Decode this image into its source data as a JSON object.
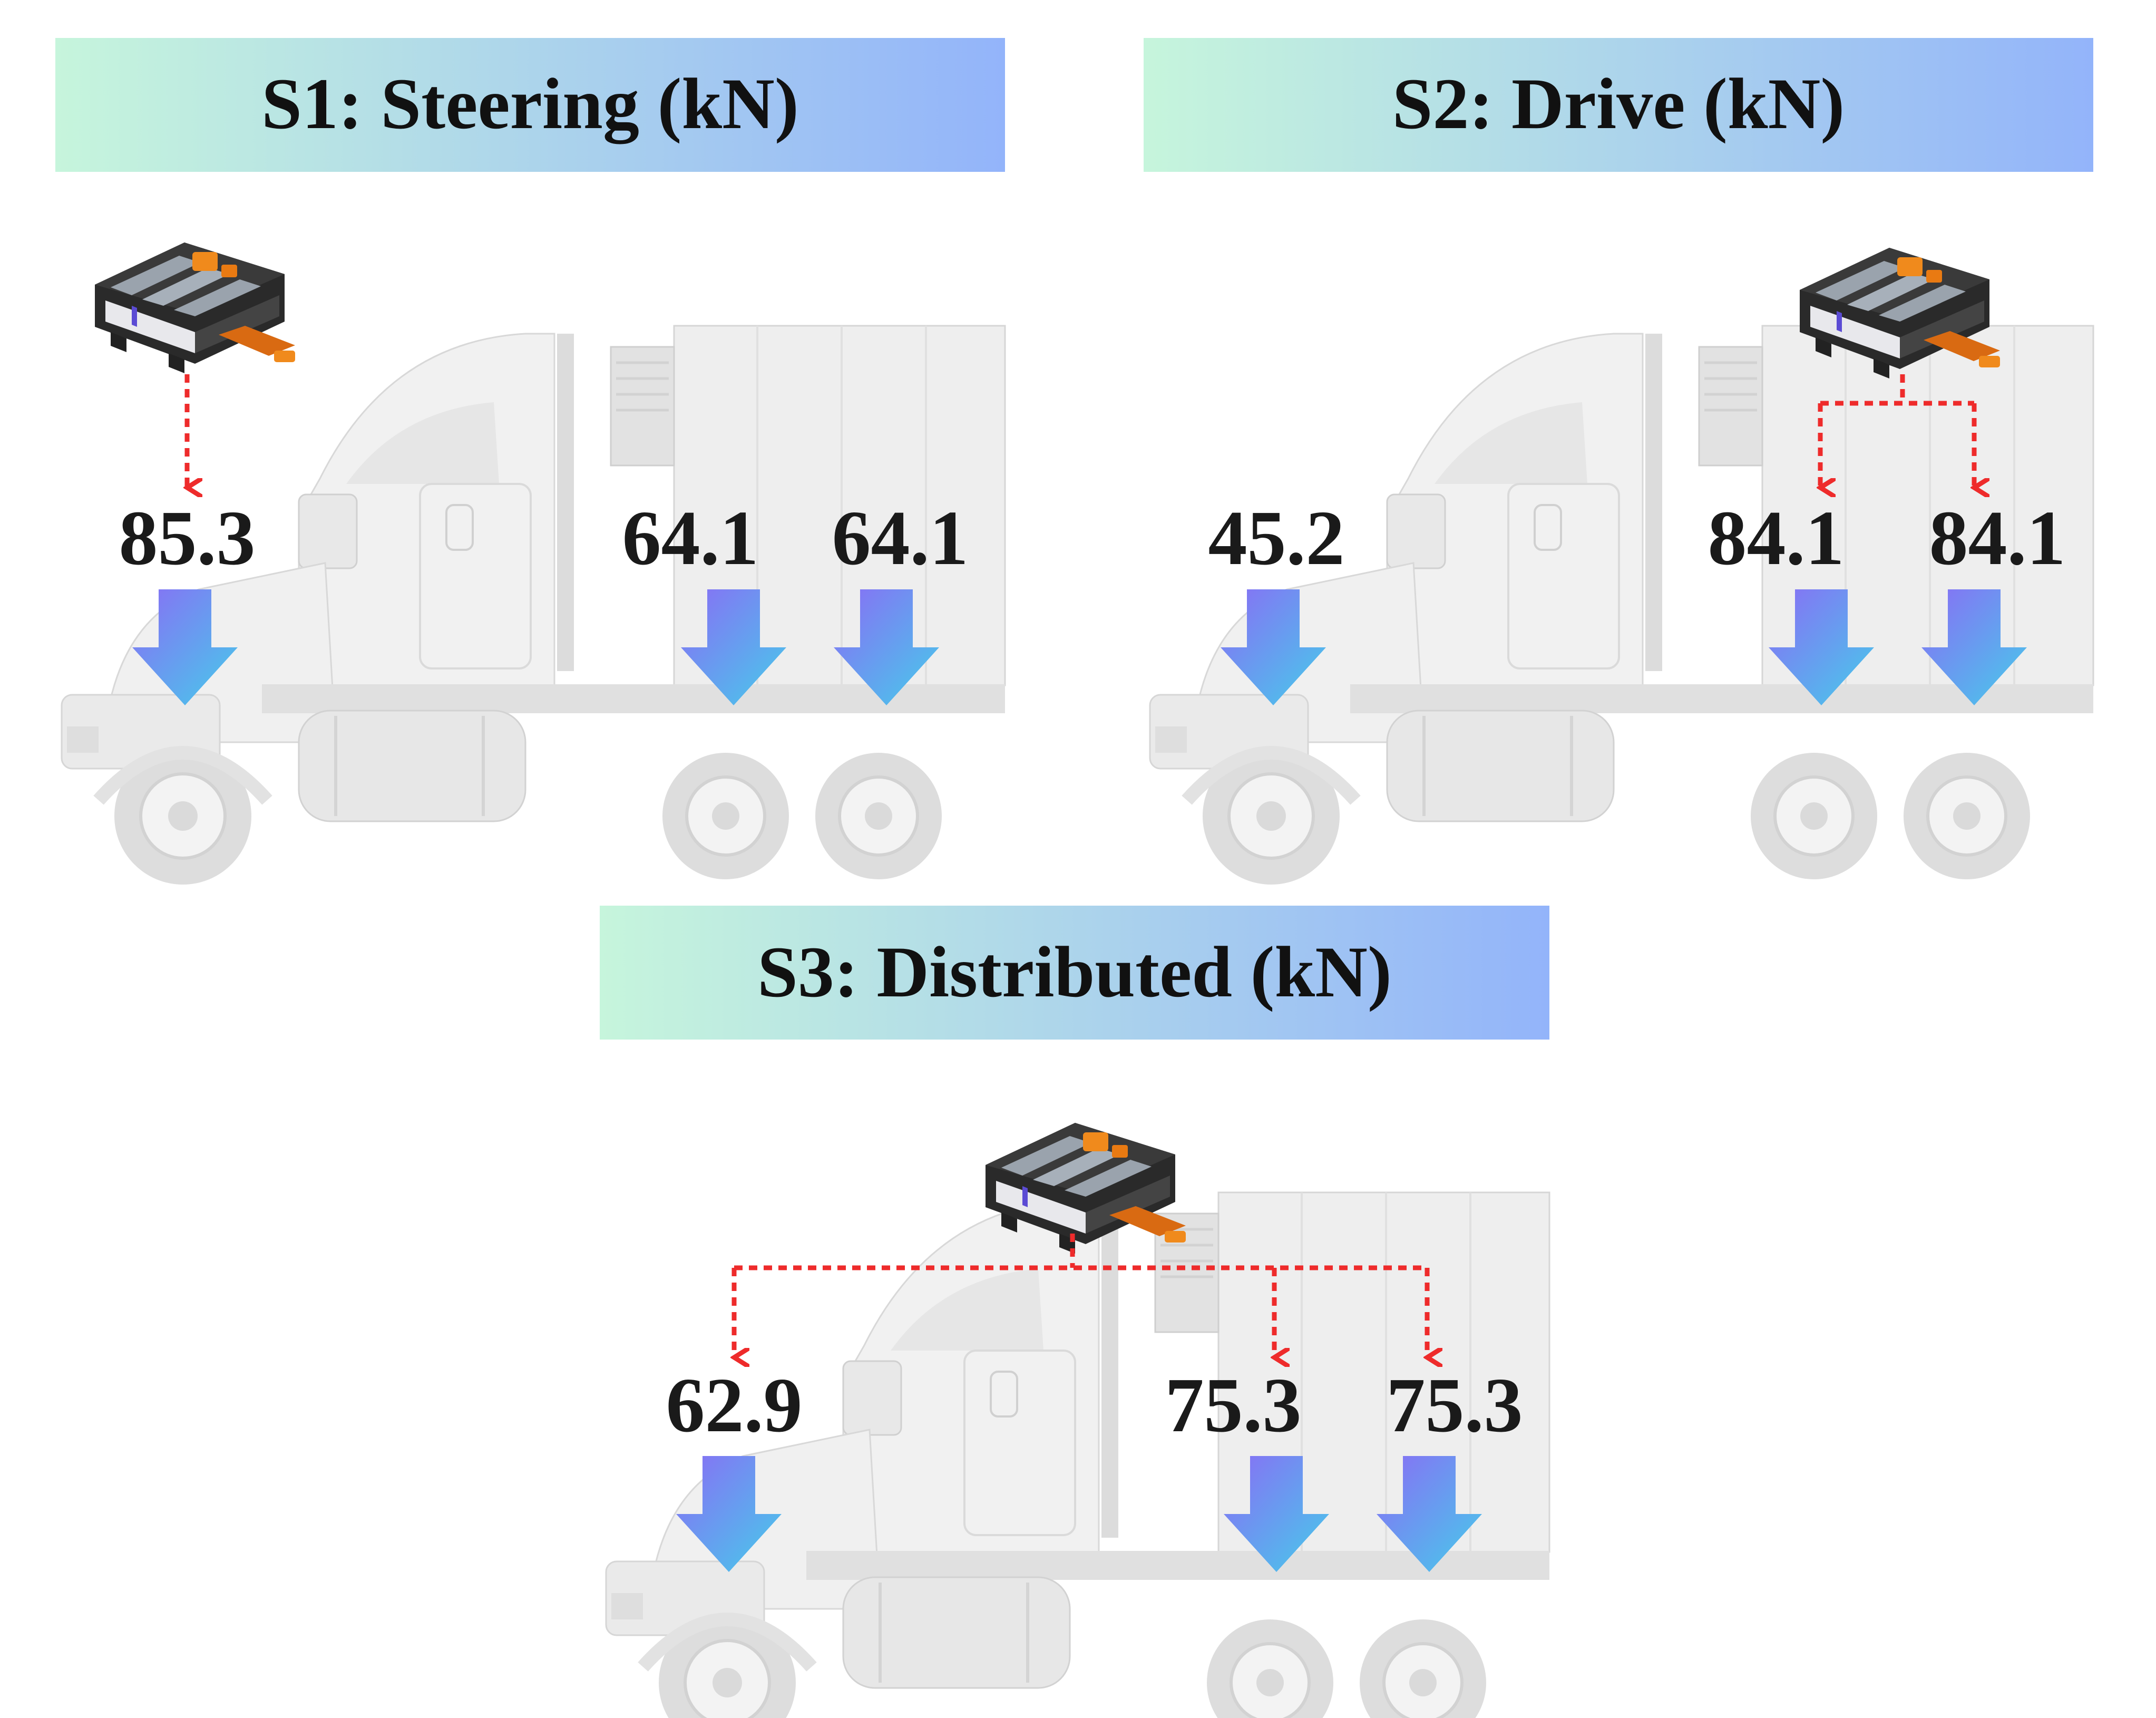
{
  "colors": {
    "banner_gradient_start": "#c6f5dc",
    "banner_gradient_end": "#93b4fa",
    "arrow_gradient_start": "#8a6cf5",
    "arrow_gradient_end": "#45cdea",
    "dotted_line": "#ee2b2b",
    "truck_body": "#ececec",
    "value_text": "#1a1a1a"
  },
  "icons": [
    "battery-pack-icon",
    "truck-illustration",
    "down-arrow-icon"
  ],
  "scenarios": [
    {
      "id": "s1",
      "title": "S1: Steering (kN)",
      "loads": [
        {
          "axle": "steering",
          "value": "85.3"
        },
        {
          "axle": "drive-1",
          "value": "64.1"
        },
        {
          "axle": "drive-2",
          "value": "64.1"
        }
      ],
      "battery_feeds": [
        "steering"
      ]
    },
    {
      "id": "s2",
      "title": "S2: Drive (kN)",
      "loads": [
        {
          "axle": "steering",
          "value": "45.2"
        },
        {
          "axle": "drive-1",
          "value": "84.1"
        },
        {
          "axle": "drive-2",
          "value": "84.1"
        }
      ],
      "battery_feeds": [
        "drive-1",
        "drive-2"
      ]
    },
    {
      "id": "s3",
      "title": "S3: Distributed (kN)",
      "loads": [
        {
          "axle": "steering",
          "value": "62.9"
        },
        {
          "axle": "drive-1",
          "value": "75.3"
        },
        {
          "axle": "drive-2",
          "value": "75.3"
        }
      ],
      "battery_feeds": [
        "steering",
        "drive-1",
        "drive-2"
      ]
    }
  ]
}
